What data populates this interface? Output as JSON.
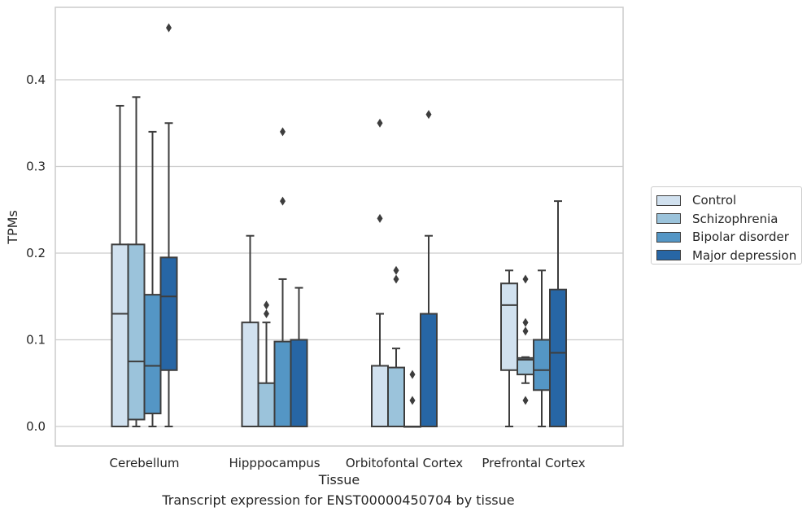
{
  "chart_data": {
    "type": "box",
    "xlabel": "Tissue",
    "ylabel": "TPMs",
    "caption": "Transcript expression for ENST00000450704 by tissue",
    "categories": [
      "Cerebellum",
      "Hipppocampus",
      "Orbitofontal Cortex",
      "Prefrontal Cortex"
    ],
    "ylim": [
      -0.022,
      0.485
    ],
    "yticks": [
      {
        "v": 0.0,
        "label": "0.0"
      },
      {
        "v": 0.1,
        "label": "0.1"
      },
      {
        "v": 0.2,
        "label": "0.2"
      },
      {
        "v": 0.3,
        "label": "0.3"
      },
      {
        "v": 0.4,
        "label": "0.4"
      }
    ],
    "grid": "horizontal",
    "legend_position": "right",
    "series": [
      {
        "name": "Control",
        "color": "#d1e1ef",
        "boxes": [
          {
            "min": 0.0,
            "q1": 0.0,
            "median": 0.13,
            "q3": 0.21,
            "max": 0.37,
            "outliers": []
          },
          {
            "min": 0.0,
            "q1": 0.0,
            "median": 0.0,
            "q3": 0.12,
            "max": 0.22,
            "outliers": []
          },
          {
            "min": 0.0,
            "q1": 0.0,
            "median": 0.0,
            "q3": 0.07,
            "max": 0.13,
            "outliers": [
              0.24,
              0.35
            ]
          },
          {
            "min": 0.0,
            "q1": 0.065,
            "median": 0.14,
            "q3": 0.165,
            "max": 0.18,
            "outliers": []
          }
        ]
      },
      {
        "name": "Schizophrenia",
        "color": "#9bc3db",
        "boxes": [
          {
            "min": 0.0,
            "q1": 0.008,
            "median": 0.075,
            "q3": 0.21,
            "max": 0.38,
            "outliers": []
          },
          {
            "min": 0.0,
            "q1": 0.0,
            "median": 0.0,
            "q3": 0.05,
            "max": 0.12,
            "outliers": [
              0.13,
              0.14
            ]
          },
          {
            "min": 0.0,
            "q1": 0.0,
            "median": 0.0,
            "q3": 0.068,
            "max": 0.09,
            "outliers": [
              0.17,
              0.18
            ]
          },
          {
            "min": 0.05,
            "q1": 0.06,
            "median": 0.077,
            "q3": 0.079,
            "max": 0.08,
            "outliers": [
              0.03,
              0.11,
              0.12,
              0.17
            ]
          }
        ]
      },
      {
        "name": "Bipolar disorder",
        "color": "#5496c5",
        "boxes": [
          {
            "min": 0.0,
            "q1": 0.015,
            "median": 0.07,
            "q3": 0.152,
            "max": 0.34,
            "outliers": []
          },
          {
            "min": 0.0,
            "q1": 0.0,
            "median": 0.0,
            "q3": 0.098,
            "max": 0.17,
            "outliers": [
              0.26,
              0.34
            ]
          },
          {
            "min": 0.0,
            "q1": 0.0,
            "median": 0.0,
            "q3": 0.0,
            "max": 0.0,
            "outliers": [
              0.03,
              0.06
            ]
          },
          {
            "min": 0.0,
            "q1": 0.042,
            "median": 0.065,
            "q3": 0.1,
            "max": 0.18,
            "outliers": []
          }
        ]
      },
      {
        "name": "Major depression",
        "color": "#2766a5",
        "boxes": [
          {
            "min": 0.0,
            "q1": 0.065,
            "median": 0.15,
            "q3": 0.195,
            "max": 0.35,
            "outliers": [
              0.46
            ]
          },
          {
            "min": 0.0,
            "q1": 0.0,
            "median": 0.0,
            "q3": 0.1,
            "max": 0.16,
            "outliers": []
          },
          {
            "min": 0.0,
            "q1": 0.0,
            "median": 0.0,
            "q3": 0.13,
            "max": 0.22,
            "outliers": [
              0.36
            ]
          },
          {
            "min": 0.0,
            "q1": 0.0,
            "median": 0.085,
            "q3": 0.158,
            "max": 0.26,
            "outliers": []
          }
        ]
      }
    ]
  }
}
